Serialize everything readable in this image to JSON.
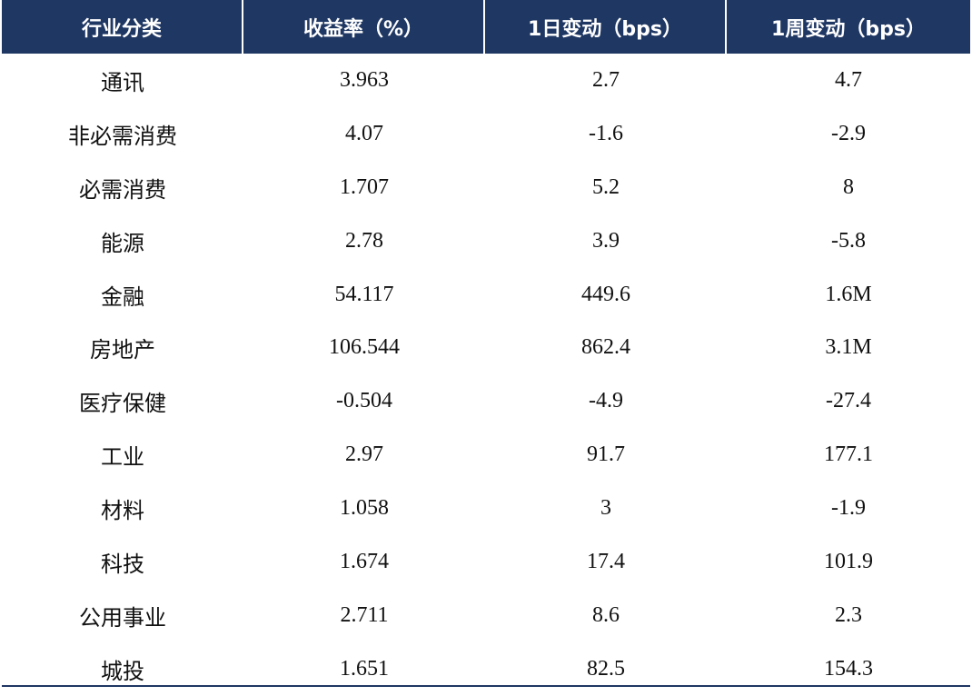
{
  "table": {
    "headers": [
      "行业分类",
      "收益率（%）",
      "1日变动（bps）",
      "1周变动（bps）"
    ],
    "rows": [
      {
        "sector": "通讯",
        "yield": "3.963",
        "d1": "2.7",
        "w1": "4.7"
      },
      {
        "sector": "非必需消费",
        "yield": "4.07",
        "d1": "-1.6",
        "w1": "-2.9"
      },
      {
        "sector": "必需消费",
        "yield": "1.707",
        "d1": "5.2",
        "w1": "8"
      },
      {
        "sector": "能源",
        "yield": "2.78",
        "d1": "3.9",
        "w1": "-5.8"
      },
      {
        "sector": "金融",
        "yield": "54.117",
        "d1": "449.6",
        "w1": "1.6M"
      },
      {
        "sector": "房地产",
        "yield": "106.544",
        "d1": "862.4",
        "w1": "3.1M"
      },
      {
        "sector": "医疗保健",
        "yield": "-0.504",
        "d1": "-4.9",
        "w1": "-27.4"
      },
      {
        "sector": "工业",
        "yield": "2.97",
        "d1": "91.7",
        "w1": "177.1"
      },
      {
        "sector": "材料",
        "yield": "1.058",
        "d1": "3",
        "w1": "-1.9"
      },
      {
        "sector": "科技",
        "yield": "1.674",
        "d1": "17.4",
        "w1": "101.9"
      },
      {
        "sector": "公用事业",
        "yield": "2.711",
        "d1": "8.6",
        "w1": "2.3"
      },
      {
        "sector": "城投",
        "yield": "1.651",
        "d1": "82.5",
        "w1": "154.3"
      }
    ]
  },
  "colors": {
    "header_bg": "#1f3763",
    "header_text": "#ffffff",
    "body_text": "#111111"
  }
}
